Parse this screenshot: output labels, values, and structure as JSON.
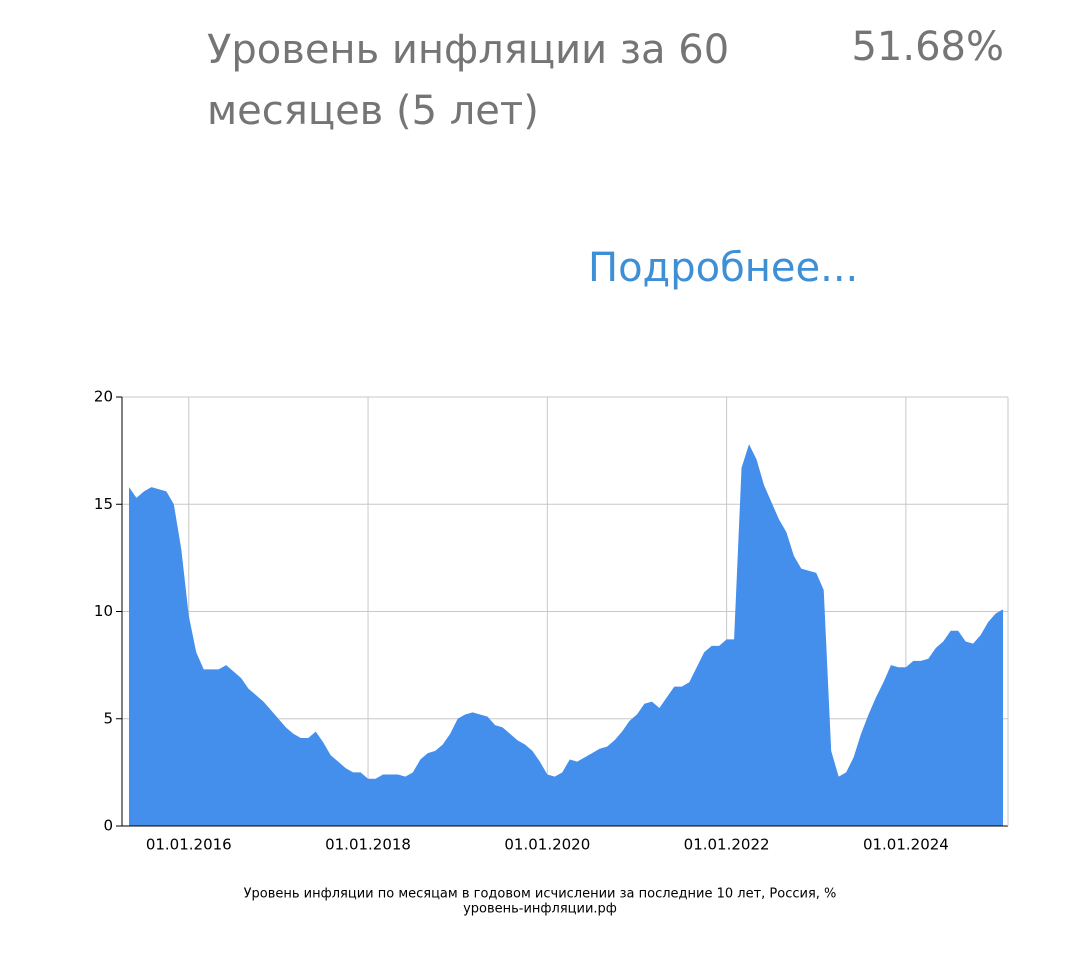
{
  "header": {
    "title": "Уровень инфляции за 60 месяцев (5 лет)",
    "value": "51.68%",
    "link": "Подробнее..."
  },
  "chart_data": {
    "type": "area",
    "caption": "Уровень инфляции по месяцам в годовом исчислении за последние 10 лет, Россия, %",
    "source": "уровень-инфляции.рф",
    "color": "#448fec",
    "grid": true,
    "categories": [
      null,
      null,
      null,
      null,
      null,
      null,
      null,
      null,
      "01.01.2016",
      null,
      null,
      null,
      null,
      null,
      null,
      null,
      null,
      null,
      null,
      null,
      null,
      null,
      null,
      null,
      null,
      null,
      null,
      null,
      null,
      null,
      null,
      null,
      "01.01.2018",
      null,
      null,
      null,
      null,
      null,
      null,
      null,
      null,
      null,
      null,
      null,
      null,
      null,
      null,
      null,
      null,
      null,
      null,
      null,
      null,
      null,
      null,
      null,
      "01.01.2020",
      null,
      null,
      null,
      null,
      null,
      null,
      null,
      null,
      null,
      null,
      null,
      null,
      null,
      null,
      null,
      null,
      null,
      null,
      null,
      null,
      null,
      null,
      null,
      "01.01.2022",
      null,
      null,
      null,
      null,
      null,
      null,
      null,
      null,
      null,
      null,
      null,
      null,
      null,
      null,
      null,
      null,
      null,
      null,
      null,
      null,
      null,
      null,
      null,
      "01.01.2024",
      null,
      null,
      null,
      null,
      null,
      null,
      null,
      null,
      null,
      null,
      null,
      null,
      null
    ],
    "values": [
      15.8,
      15.3,
      15.6,
      15.8,
      15.7,
      15.6,
      15.0,
      12.9,
      9.8,
      8.1,
      7.3,
      7.3,
      7.3,
      7.5,
      7.2,
      6.9,
      6.4,
      6.1,
      5.8,
      5.4,
      5.0,
      4.6,
      4.3,
      4.1,
      4.1,
      4.4,
      3.9,
      3.3,
      3.0,
      2.7,
      2.5,
      2.5,
      2.2,
      2.2,
      2.4,
      2.4,
      2.4,
      2.3,
      2.5,
      3.1,
      3.4,
      3.5,
      3.8,
      4.3,
      5.0,
      5.2,
      5.3,
      5.2,
      5.1,
      4.7,
      4.6,
      4.3,
      4.0,
      3.8,
      3.5,
      3.0,
      2.4,
      2.3,
      2.5,
      3.1,
      3.0,
      3.2,
      3.4,
      3.6,
      3.7,
      4.0,
      4.4,
      4.9,
      5.2,
      5.7,
      5.8,
      5.5,
      6.0,
      6.5,
      6.5,
      6.7,
      7.4,
      8.1,
      8.4,
      8.4,
      8.7,
      8.7,
      16.7,
      17.8,
      17.1,
      15.9,
      15.1,
      14.3,
      13.7,
      12.6,
      12.0,
      11.9,
      11.8,
      11.0,
      3.5,
      2.3,
      2.5,
      3.2,
      4.3,
      5.2,
      6.0,
      6.7,
      7.5,
      7.4,
      7.4,
      7.7,
      7.7,
      7.8,
      8.3,
      8.6,
      9.1,
      9.1,
      8.6,
      8.5,
      8.9,
      9.5,
      9.9,
      10.1
    ],
    "ylim": [
      0,
      20
    ],
    "yticks": [
      0,
      5,
      10,
      15,
      20
    ]
  }
}
